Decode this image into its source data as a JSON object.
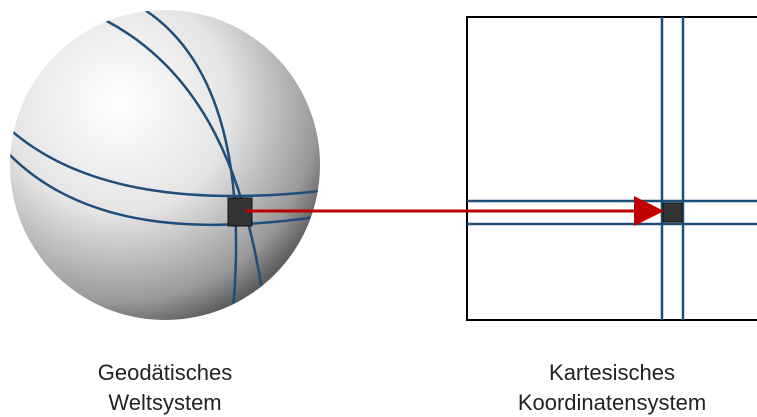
{
  "nodes": [
    {
      "label": [
        "Geodätisches",
        "Weltsystem"
      ]
    },
    {
      "label": [
        "Kartesisches",
        "Koordinatensystem"
      ]
    }
  ]
}
